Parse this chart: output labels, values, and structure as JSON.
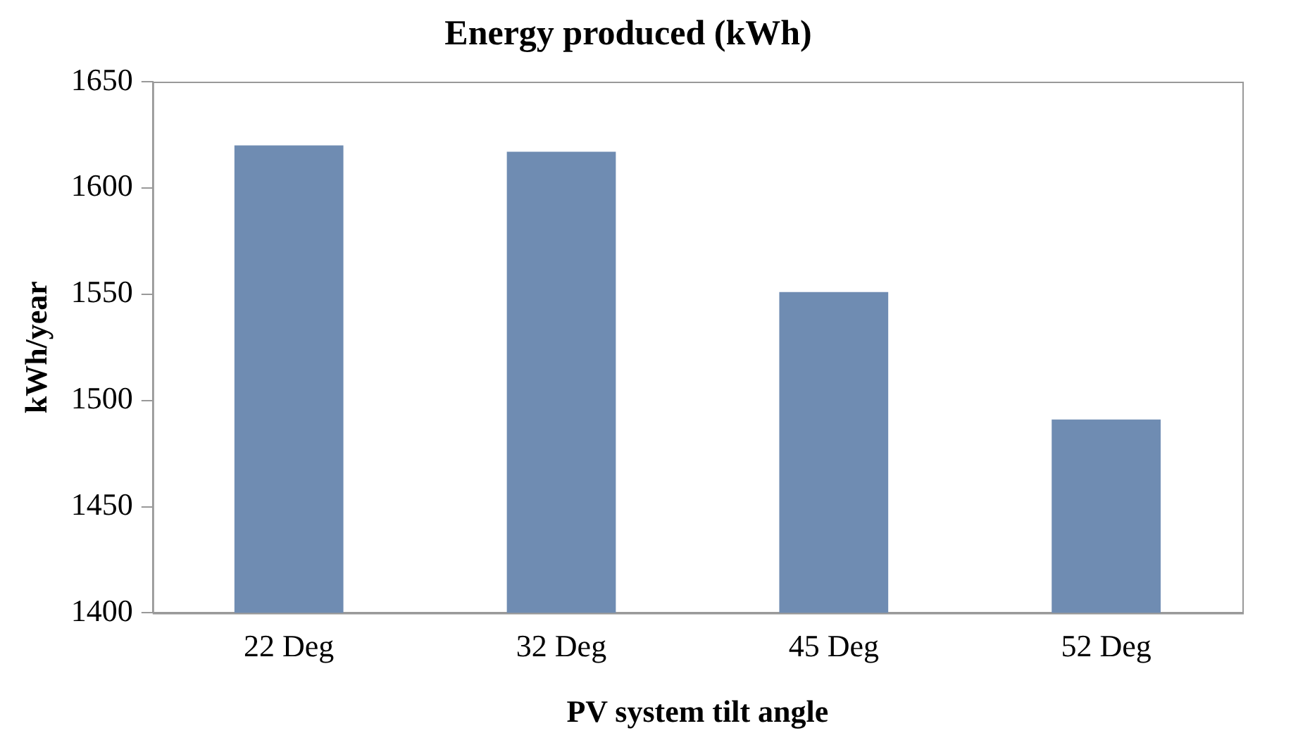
{
  "chart_data": {
    "type": "bar",
    "title": "Energy produced (kWh)",
    "xlabel": "PV system tilt angle",
    "ylabel": "kWh/year",
    "categories": [
      "22 Deg",
      "32 Deg",
      "45 Deg",
      "52 Deg"
    ],
    "values": [
      1620,
      1617,
      1551,
      1491
    ],
    "color": "#6f8cb2",
    "ylim": [
      1400,
      1650
    ],
    "yticks": [
      1400,
      1450,
      1500,
      1550,
      1600,
      1650
    ],
    "grid": false,
    "legend": false
  }
}
